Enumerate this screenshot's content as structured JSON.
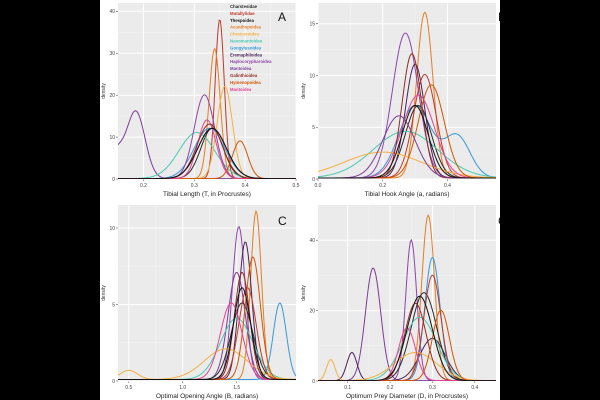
{
  "legend": [
    {
      "name": "Charstesidae",
      "color": "#2a2a2a"
    },
    {
      "name": "Mutallylidae",
      "color": "#c0392b"
    },
    {
      "name": "Thespoidea",
      "color": "#111111"
    },
    {
      "name": "Acanthopoidea",
      "color": "#e67e22"
    },
    {
      "name": "Chroiceroidea",
      "color": "#f5b041"
    },
    {
      "name": "Nanomantoidea",
      "color": "#48c9b0"
    },
    {
      "name": "Gongylusoidea",
      "color": "#3498db"
    },
    {
      "name": "Eremaphiloidea",
      "color": "#4a235a"
    },
    {
      "name": "Haplocorypharoidea",
      "color": "#8e44ad"
    },
    {
      "name": "Mantoidea",
      "color": "#7d3c98"
    },
    {
      "name": "Galinthioidea",
      "color": "#922b21"
    },
    {
      "name": "Hymenopoidea",
      "color": "#d35400"
    },
    {
      "name": "Mantoidea",
      "color": "#e84393"
    }
  ],
  "chart_data": [
    {
      "type": "line",
      "panel": "A",
      "xlabel": "Tibial Length (T, in Procrustes)",
      "ylabel": "density",
      "xlim": [
        0.15,
        0.5
      ],
      "ylim": [
        0,
        42
      ],
      "xticks": [
        0.2,
        0.3,
        0.4,
        0.5
      ],
      "xtick_labels": [
        "0.2",
        "0.3",
        "0.4",
        "0.5"
      ],
      "yticks": [
        0,
        10,
        20,
        30,
        40
      ],
      "ytick_labels": [
        "0",
        "10",
        "20",
        "30",
        "40"
      ],
      "series": [
        {
          "name": "Mantoidea",
          "color": "#7d3c98",
          "components": [
            [
              0.185,
              0.018,
              16
            ],
            [
              0.145,
              0.015,
              6
            ]
          ]
        },
        {
          "name": "Mutallylidae",
          "color": "#c0392b",
          "components": [
            [
              0.35,
              0.009,
              38
            ]
          ]
        },
        {
          "name": "Acanthopoidea",
          "color": "#e67e22",
          "components": [
            [
              0.34,
              0.011,
              31
            ]
          ]
        },
        {
          "name": "Charstesidae",
          "color": "#2a2a2a",
          "components": [
            [
              0.335,
              0.022,
              12
            ]
          ]
        },
        {
          "name": "Gongylusoidea",
          "color": "#3498db",
          "components": [
            [
              0.33,
              0.03,
              12
            ]
          ]
        },
        {
          "name": "Nanomantoidea",
          "color": "#48c9b0",
          "components": [
            [
              0.305,
              0.035,
              11
            ]
          ]
        },
        {
          "name": "Eremaphiloidea",
          "color": "#4a235a",
          "components": [
            [
              0.335,
              0.028,
              12
            ]
          ]
        },
        {
          "name": "Haplocorypharoidea",
          "color": "#8e44ad",
          "components": [
            [
              0.32,
              0.02,
              20
            ]
          ]
        },
        {
          "name": "Chroiceroidea",
          "color": "#f5b041",
          "components": [
            [
              0.36,
              0.015,
              22
            ]
          ]
        },
        {
          "name": "Hymenopoidea",
          "color": "#d35400",
          "components": [
            [
              0.39,
              0.015,
              9
            ]
          ]
        },
        {
          "name": "Mantoidea",
          "color": "#e84393",
          "components": [
            [
              0.325,
              0.018,
              14
            ]
          ]
        },
        {
          "name": "Galinthioidea",
          "color": "#922b21",
          "components": [
            [
              0.33,
              0.025,
              13
            ]
          ]
        },
        {
          "name": "Thespoidea",
          "color": "#111111",
          "components": [
            [
              0.335,
              0.028,
              12
            ]
          ]
        }
      ]
    },
    {
      "type": "line",
      "panel": "B",
      "xlabel": "Tibial Hook Angle (a, radians)",
      "ylabel": "density",
      "xlim": [
        0.0,
        0.55
      ],
      "ylim": [
        0,
        17
      ],
      "xticks": [
        0.0,
        0.2,
        0.4
      ],
      "xtick_labels": [
        "0.0",
        "0.2",
        "0.4"
      ],
      "yticks": [
        0,
        5,
        10,
        15
      ],
      "ytick_labels": [
        "0",
        "5",
        "10",
        "15"
      ],
      "series": [
        {
          "name": "Acanthopoidea",
          "color": "#e67e22",
          "components": [
            [
              0.33,
              0.025,
              16
            ]
          ]
        },
        {
          "name": "Haplocorypharoidea",
          "color": "#8e44ad",
          "components": [
            [
              0.27,
              0.04,
              14
            ]
          ]
        },
        {
          "name": "Gongylusoidea",
          "color": "#3498db",
          "components": [
            [
              0.3,
              0.05,
              7
            ],
            [
              0.43,
              0.04,
              4
            ]
          ]
        },
        {
          "name": "Charstesidae",
          "color": "#2a2a2a",
          "components": [
            [
              0.31,
              0.04,
              7
            ]
          ]
        },
        {
          "name": "Nanomantoidea",
          "color": "#48c9b0",
          "components": [
            [
              0.27,
              0.1,
              4.5
            ]
          ]
        },
        {
          "name": "Eremaphiloidea",
          "color": "#4a235a",
          "components": [
            [
              0.3,
              0.03,
              11
            ]
          ]
        },
        {
          "name": "Mutallylidae",
          "color": "#c0392b",
          "components": [
            [
              0.33,
              0.035,
              10
            ]
          ]
        },
        {
          "name": "Chroiceroidea",
          "color": "#f5b041",
          "components": [
            [
              0.2,
              0.12,
              2.5
            ]
          ]
        },
        {
          "name": "Mantoidea",
          "color": "#e84393",
          "components": [
            [
              0.31,
              0.05,
              8
            ]
          ]
        },
        {
          "name": "Hymenopoidea",
          "color": "#d35400",
          "components": [
            [
              0.35,
              0.04,
              9
            ]
          ]
        },
        {
          "name": "Galinthioidea",
          "color": "#922b21",
          "components": [
            [
              0.29,
              0.03,
              12
            ]
          ]
        },
        {
          "name": "Mantoidea",
          "color": "#7d3c98",
          "components": [
            [
              0.25,
              0.05,
              6
            ]
          ]
        },
        {
          "name": "Thespoidea",
          "color": "#111111",
          "components": [
            [
              0.3,
              0.04,
              7
            ]
          ]
        }
      ]
    },
    {
      "type": "line",
      "panel": "C",
      "xlabel": "Optimal Opening Angle (B, radians)",
      "ylabel": "density",
      "xlim": [
        0.4,
        2.05
      ],
      "ylim": [
        0,
        11.5
      ],
      "xticks": [
        0.5,
        1.0,
        1.5
      ],
      "xtick_labels": [
        "0.5",
        "1.0",
        "1.5"
      ],
      "yticks": [
        0,
        5,
        10
      ],
      "ytick_labels": [
        "0",
        "5",
        "10"
      ],
      "series": [
        {
          "name": "Acanthopoidea",
          "color": "#e67e22",
          "components": [
            [
              1.68,
              0.05,
              11
            ]
          ]
        },
        {
          "name": "Haplocorypharoidea",
          "color": "#8e44ad",
          "components": [
            [
              1.52,
              0.06,
              10
            ]
          ]
        },
        {
          "name": "Eremaphiloidea",
          "color": "#4a235a",
          "components": [
            [
              1.58,
              0.06,
              9
            ]
          ]
        },
        {
          "name": "Gongylusoidea",
          "color": "#3498db",
          "components": [
            [
              1.9,
              0.06,
              5
            ]
          ]
        },
        {
          "name": "Mantoidea",
          "color": "#7d3c98",
          "components": [
            [
              1.5,
              0.08,
              7
            ]
          ]
        },
        {
          "name": "Charstesidae",
          "color": "#2a2a2a",
          "components": [
            [
              1.55,
              0.1,
              5
            ]
          ]
        },
        {
          "name": "Nanomantoidea",
          "color": "#48c9b0",
          "components": [
            [
              1.5,
              0.15,
              4
            ]
          ]
        },
        {
          "name": "Mutallylidae",
          "color": "#c0392b",
          "components": [
            [
              1.6,
              0.08,
              6
            ]
          ]
        },
        {
          "name": "Chroiceroidea",
          "color": "#f5b041",
          "components": [
            [
              0.5,
              0.08,
              0.6
            ],
            [
              1.4,
              0.2,
              2
            ]
          ]
        },
        {
          "name": "Hymenopoidea",
          "color": "#d35400",
          "components": [
            [
              1.65,
              0.07,
              8
            ]
          ]
        },
        {
          "name": "Galinthioidea",
          "color": "#922b21",
          "components": [
            [
              1.55,
              0.07,
              7
            ]
          ]
        },
        {
          "name": "Mantoidea",
          "color": "#e84393",
          "components": [
            [
              1.45,
              0.1,
              5
            ]
          ]
        },
        {
          "name": "Thespoidea",
          "color": "#111111",
          "components": [
            [
              1.55,
              0.08,
              6
            ]
          ]
        }
      ]
    },
    {
      "type": "line",
      "panel": "C",
      "xlabel": "Optimum Prey Diameter (D, in Procrustes)",
      "ylabel": "density",
      "xlim": [
        0.03,
        0.45
      ],
      "ylim": [
        0,
        50
      ],
      "xticks": [
        0.1,
        0.2,
        0.3,
        0.4
      ],
      "xtick_labels": [
        "0.1",
        "0.2",
        "0.3",
        "0.4"
      ],
      "yticks": [
        0,
        20,
        40
      ],
      "ytick_labels": [
        "0",
        "20",
        "40"
      ],
      "series": [
        {
          "name": "Acanthopoidea",
          "color": "#e67e22",
          "components": [
            [
              0.29,
              0.015,
              47
            ]
          ]
        },
        {
          "name": "Haplocorypharoidea",
          "color": "#8e44ad",
          "components": [
            [
              0.25,
              0.013,
              40
            ]
          ]
        },
        {
          "name": "Mantoidea",
          "color": "#7d3c98",
          "components": [
            [
              0.16,
              0.018,
              32
            ]
          ]
        },
        {
          "name": "Eremaphiloidea",
          "color": "#4a235a",
          "components": [
            [
              0.11,
              0.012,
              8
            ],
            [
              0.3,
              0.03,
              12
            ]
          ]
        },
        {
          "name": "Gongylusoidea",
          "color": "#3498db",
          "components": [
            [
              0.3,
              0.018,
              35
            ]
          ]
        },
        {
          "name": "Charstesidae",
          "color": "#2a2a2a",
          "components": [
            [
              0.28,
              0.03,
              25
            ]
          ]
        },
        {
          "name": "Nanomantoidea",
          "color": "#48c9b0",
          "components": [
            [
              0.27,
              0.04,
              18
            ]
          ]
        },
        {
          "name": "Mutallylidae",
          "color": "#c0392b",
          "components": [
            [
              0.3,
              0.02,
              30
            ]
          ]
        },
        {
          "name": "Chroiceroidea",
          "color": "#f5b041",
          "components": [
            [
              0.06,
              0.01,
              6
            ],
            [
              0.26,
              0.05,
              8
            ]
          ]
        },
        {
          "name": "Hymenopoidea",
          "color": "#d35400",
          "components": [
            [
              0.32,
              0.02,
              20
            ]
          ]
        },
        {
          "name": "Galinthioidea",
          "color": "#922b21",
          "components": [
            [
              0.26,
              0.025,
              22
            ]
          ]
        },
        {
          "name": "Mantoidea",
          "color": "#e84393",
          "components": [
            [
              0.24,
              0.02,
              15
            ]
          ]
        },
        {
          "name": "Thespoidea",
          "color": "#111111",
          "components": [
            [
              0.27,
              0.03,
              24
            ]
          ]
        }
      ]
    }
  ]
}
